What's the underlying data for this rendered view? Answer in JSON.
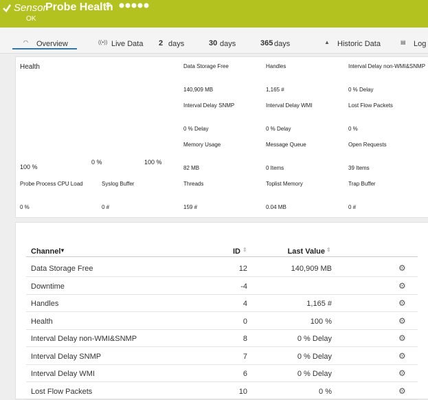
{
  "header": {
    "kind": "Sensor",
    "title": "Probe Health",
    "status": "OK"
  },
  "tabs": [
    {
      "label": "Overview"
    },
    {
      "label": "Live Data"
    },
    {
      "number": "2",
      "label": "days"
    },
    {
      "number": "30",
      "label": "days"
    },
    {
      "number": "365",
      "label": "days"
    },
    {
      "label": "Historic Data"
    },
    {
      "label": "Log"
    }
  ],
  "health": {
    "label": "Health",
    "value": "100 %",
    "min": "0 %",
    "max": "100 %"
  },
  "gauges": [
    {
      "label": "Data Storage Free",
      "value": "140,909 MB"
    },
    {
      "label": "Handles",
      "value": "1,165 #"
    },
    {
      "label": "Interval Delay non-WMI&SNMP",
      "value": "0 % Delay"
    },
    {
      "label": "Interval Delay SNMP",
      "value": "0 % Delay"
    },
    {
      "label": "Interval Delay WMI",
      "value": "0 % Delay"
    },
    {
      "label": "Lost Flow Packets",
      "value": "0 %"
    },
    {
      "label": "Memory Usage",
      "value": "82 MB"
    },
    {
      "label": "Message Queue",
      "value": "0 Items"
    },
    {
      "label": "Open Requests",
      "value": "39 Items"
    },
    {
      "label": "Probe Process CPU Load",
      "value": "0 %"
    },
    {
      "label": "Syslog Buffer",
      "value": "0 #"
    },
    {
      "label": "Threads",
      "value": "159 #"
    },
    {
      "label": "Toplist Memory",
      "value": "0.04 MB"
    },
    {
      "label": "Trap Buffer",
      "value": "0 #"
    }
  ],
  "table": {
    "columns": [
      "Channel",
      "ID",
      "Last Value"
    ],
    "rows": [
      {
        "channel": "Data Storage Free",
        "id": "12",
        "last_value": "140,909 MB"
      },
      {
        "channel": "Downtime",
        "id": "-4"
      },
      {
        "channel": "Handles",
        "id": "4",
        "last_value": "1,165 #"
      },
      {
        "channel": "Health",
        "id": "0",
        "last_value": "100 %"
      },
      {
        "channel": "Interval Delay non-WMI&SNMP",
        "id": "8",
        "last_value": "0 % Delay"
      },
      {
        "channel": "Interval Delay SNMP",
        "id": "7",
        "last_value": "0 % Delay"
      },
      {
        "channel": "Interval Delay WMI",
        "id": "6",
        "last_value": "0 % Delay"
      },
      {
        "channel": "Lost Flow Packets",
        "id": "10",
        "last_value": "0 %"
      }
    ]
  }
}
